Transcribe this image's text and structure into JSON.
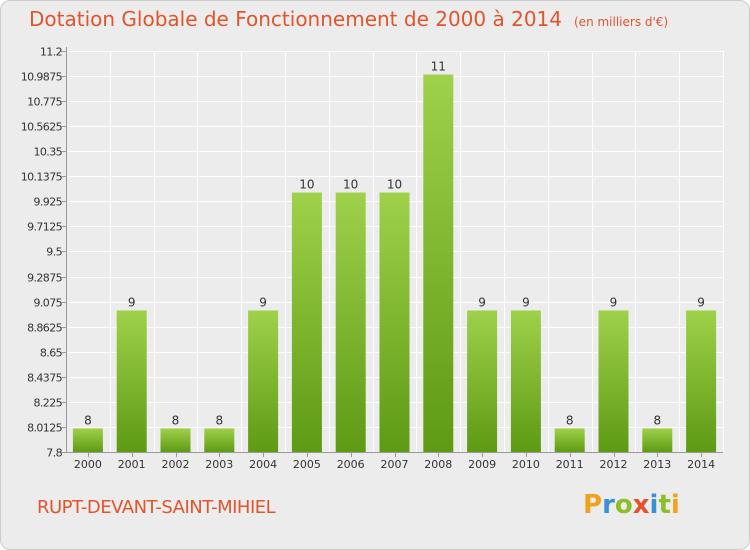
{
  "title": "Dotation Globale de Fonctionnement de 2000 à 2014",
  "subtitle": "(en milliers d'€)",
  "commune": "RUPT-DEVANT-SAINT-MIHIEL",
  "logo": {
    "letters": [
      "P",
      "r",
      "o",
      "x",
      "i",
      "t",
      "i"
    ],
    "colors": [
      "#f0a21c",
      "#3b8fd4",
      "#8cbf26",
      "#e8502a",
      "#3b8fd4",
      "#8cbf26",
      "#f0a21c"
    ]
  },
  "colors": {
    "bar_top": "#9fd14a",
    "bar_bottom": "#5e9a14",
    "grid": "#ffffff",
    "text": "#333333",
    "accent": "#e0552c"
  },
  "chart_data": {
    "type": "bar",
    "title": "Dotation Globale de Fonctionnement de 2000 à 2014",
    "xlabel": "",
    "ylabel": "",
    "categories": [
      "2000",
      "2001",
      "2002",
      "2003",
      "2004",
      "2005",
      "2006",
      "2007",
      "2008",
      "2009",
      "2010",
      "2011",
      "2012",
      "2013",
      "2014"
    ],
    "values": [
      8,
      9,
      8,
      8,
      9,
      10,
      10,
      10,
      11,
      9,
      9,
      8,
      9,
      8,
      9
    ],
    "value_labels": [
      "8",
      "9",
      "8",
      "8",
      "9",
      "10",
      "10",
      "10",
      "11",
      "9",
      "9",
      "8",
      "9",
      "8",
      "9"
    ],
    "ylim": [
      7.8,
      11.2
    ],
    "yticks": [
      "7.8",
      "8.0125",
      "8.225",
      "8.4375",
      "8.65",
      "8.8625",
      "9.075",
      "9.2875",
      "9.5",
      "9.7125",
      "9.925",
      "10.1375",
      "10.35",
      "10.5625",
      "10.775",
      "10.9875",
      "11.2"
    ],
    "grid": true
  }
}
